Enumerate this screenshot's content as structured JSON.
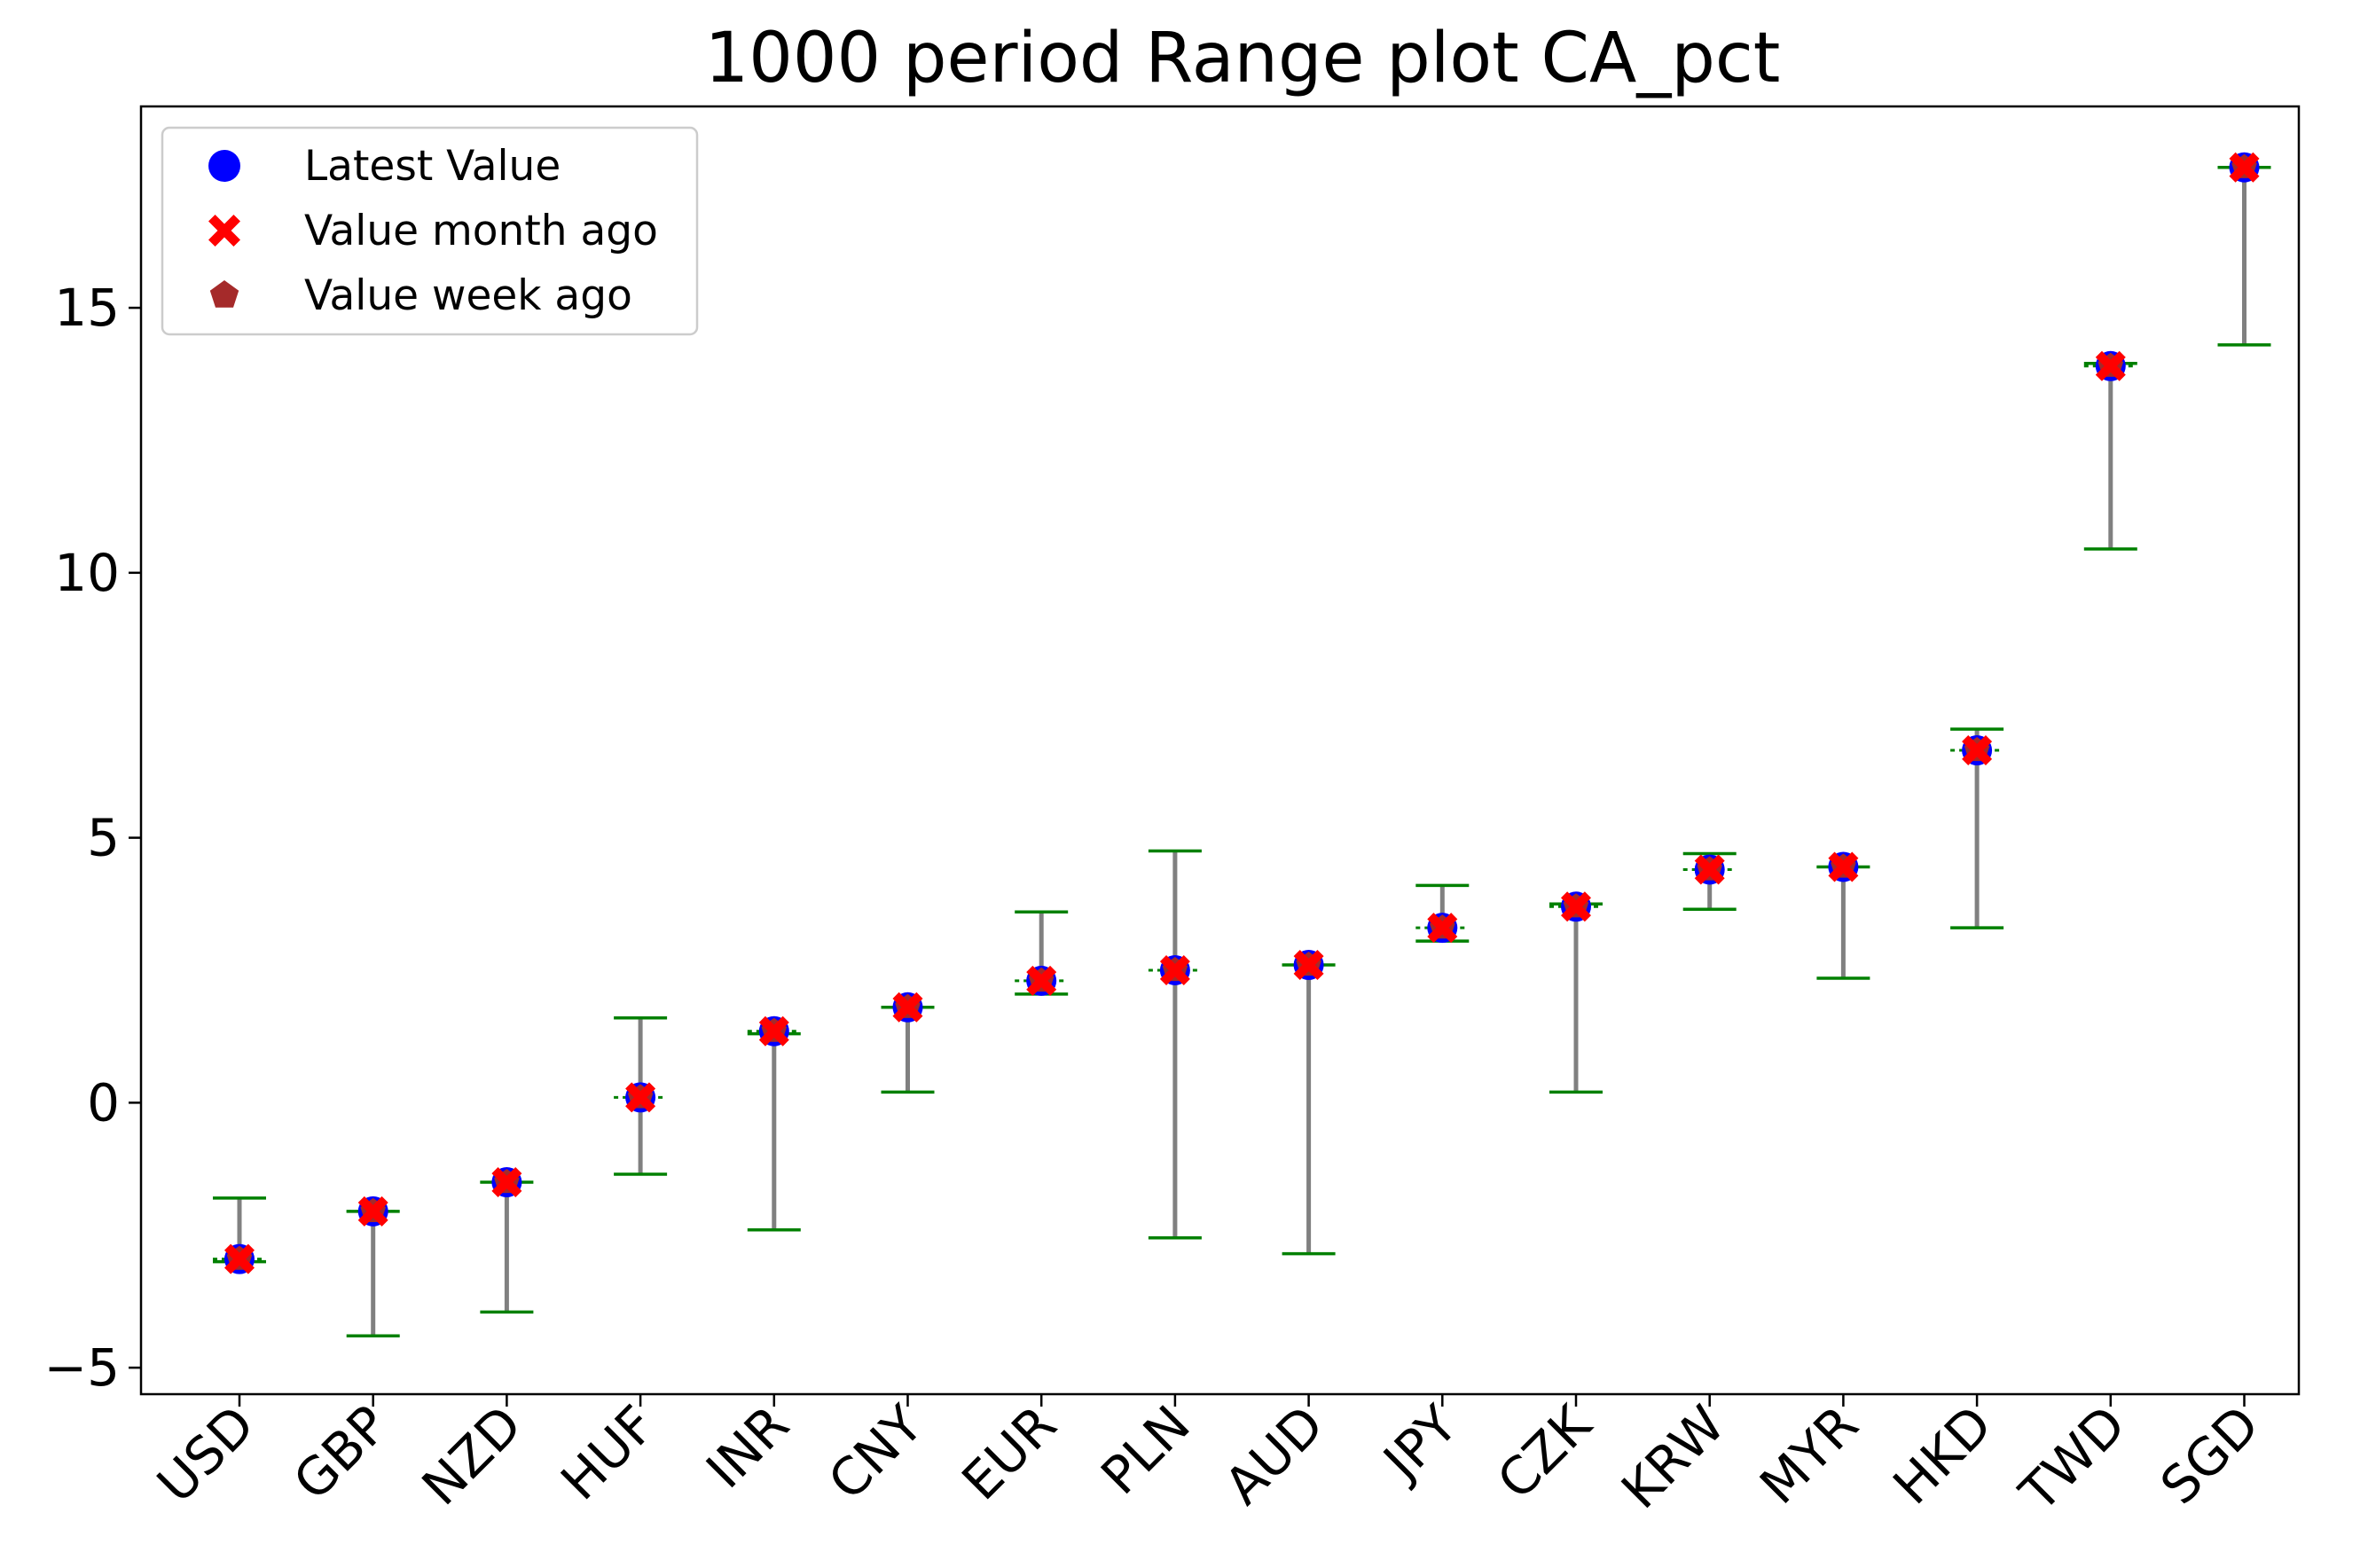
{
  "chart_data": {
    "type": "scatter",
    "title": "1000 period Range plot CA_pct",
    "xlabel": "",
    "ylabel": "",
    "categories": [
      "USD",
      "GBP",
      "NZD",
      "HUF",
      "INR",
      "CNY",
      "EUR",
      "PLN",
      "AUD",
      "JPY",
      "CZK",
      "KRW",
      "MYR",
      "HKD",
      "TWD",
      "SGD"
    ],
    "ylim": [
      -5.5,
      18.8
    ],
    "yticks": [
      -5,
      0,
      5,
      10,
      15
    ],
    "ytick_labels": [
      "−5",
      "0",
      "5",
      "10",
      "15"
    ],
    "range_low": [
      -3.0,
      -4.4,
      -3.95,
      -1.35,
      -2.4,
      0.2,
      2.05,
      -2.55,
      -2.85,
      3.05,
      0.2,
      3.65,
      2.35,
      3.3,
      10.45,
      14.3
    ],
    "range_high": [
      -1.8,
      -2.05,
      -1.5,
      1.6,
      1.3,
      1.8,
      3.6,
      4.75,
      2.6,
      4.1,
      3.75,
      4.7,
      4.45,
      7.05,
      13.95,
      17.65
    ],
    "series": [
      {
        "name": "Latest Value",
        "marker": "circle",
        "color": "#0000ff",
        "values": [
          -2.95,
          -2.05,
          -1.5,
          0.1,
          1.35,
          1.8,
          2.3,
          2.5,
          2.6,
          3.3,
          3.7,
          4.4,
          4.45,
          6.65,
          13.9,
          17.65
        ]
      },
      {
        "name": "Value month ago",
        "marker": "x",
        "color": "#ff0000",
        "values": [
          -2.95,
          -2.05,
          -1.5,
          0.1,
          1.35,
          1.8,
          2.3,
          2.5,
          2.6,
          3.3,
          3.7,
          4.4,
          4.45,
          6.65,
          13.9,
          17.65
        ]
      },
      {
        "name": "Value week ago",
        "marker": "pentagon",
        "color": "#a52a2a",
        "values": [
          -2.95,
          -2.05,
          -1.5,
          0.1,
          1.35,
          1.8,
          2.3,
          2.5,
          2.6,
          3.3,
          3.7,
          4.4,
          4.45,
          6.65,
          13.9,
          17.65
        ]
      }
    ],
    "colors": {
      "range_line": "#808080",
      "range_cap": "#008000",
      "latest_line": "#008000"
    },
    "legend": "top-left",
    "grid": false
  }
}
